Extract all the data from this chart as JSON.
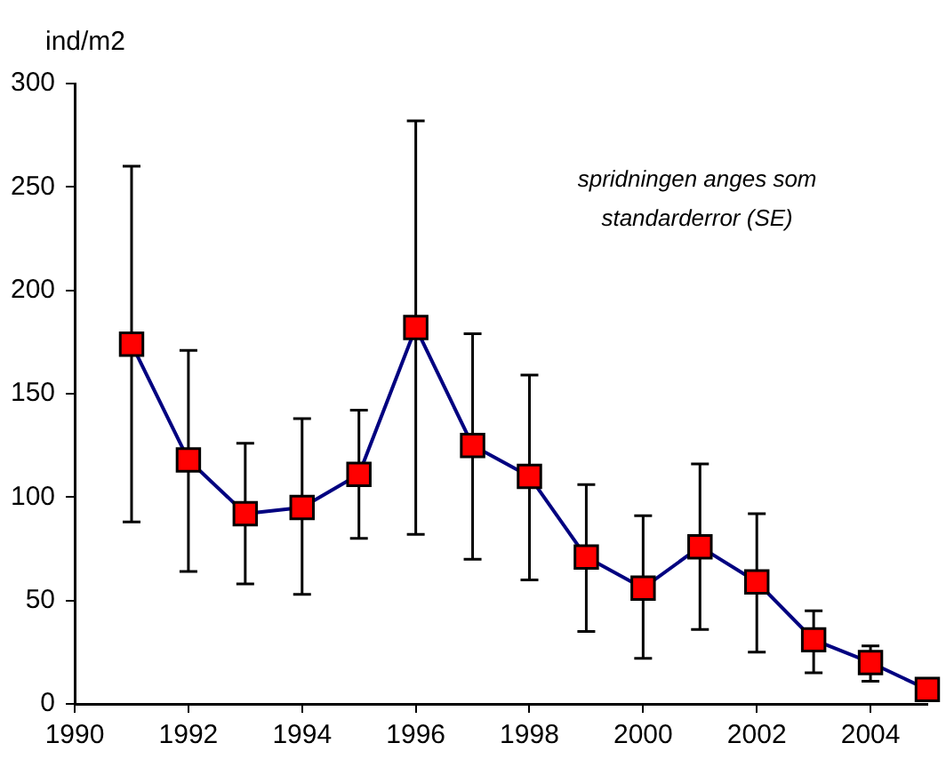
{
  "chart_data": {
    "type": "line",
    "ylabel": "ind/m2",
    "annotations": [
      "spridningen anges som standarderror (SE)"
    ],
    "x": [
      1991,
      1992,
      1993,
      1994,
      1995,
      1996,
      1997,
      1998,
      1999,
      2000,
      2001,
      2002,
      2003,
      2004,
      2005
    ],
    "series": [
      {
        "color": "#000080",
        "values": [
          174,
          118,
          92,
          95,
          111,
          182,
          125,
          110,
          71,
          56,
          76,
          59,
          31,
          20,
          7
        ],
        "errors": [
          [
            88,
            260
          ],
          [
            64,
            171
          ],
          [
            58,
            126
          ],
          [
            53,
            138
          ],
          [
            80,
            142
          ],
          [
            82,
            282
          ],
          [
            70,
            179
          ],
          [
            60,
            159
          ],
          [
            35,
            106
          ],
          [
            22,
            91
          ],
          [
            36,
            116
          ],
          [
            25,
            92
          ],
          [
            15,
            45
          ],
          [
            11,
            28
          ],
          null
        ]
      }
    ],
    "marker": "square",
    "line_style": "solid",
    "xlim": [
      1990,
      2005
    ],
    "xticks": [
      1990,
      1992,
      1994,
      1996,
      1998,
      2000,
      2002,
      2004
    ],
    "ylim": [
      0,
      300
    ],
    "yticks": [
      0,
      50,
      100,
      150,
      200,
      250,
      300
    ],
    "grid": false,
    "legend": false
  }
}
